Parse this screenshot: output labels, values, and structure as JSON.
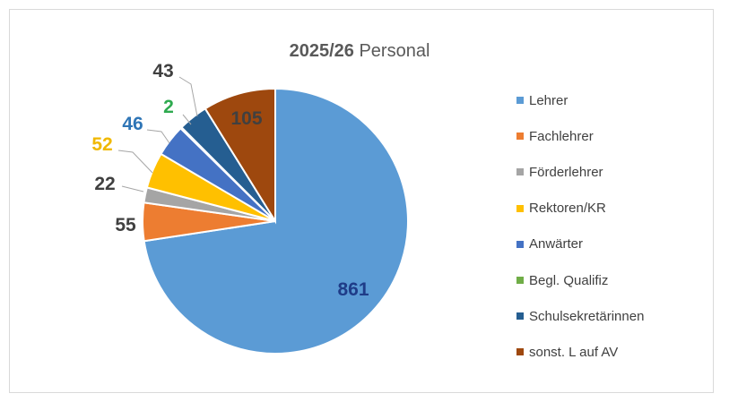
{
  "chart_data": {
    "type": "pie",
    "title_year": "2025/26",
    "title_rest": "Personal",
    "slices": [
      {
        "name": "Lehrer",
        "value": 861,
        "color": "#5B9BD5",
        "label_color": "#1F3C88"
      },
      {
        "name": "Fachlehrer",
        "value": 55,
        "color": "#ED7D31",
        "label_color": "#404040"
      },
      {
        "name": "Förderlehrer",
        "value": 22,
        "color": "#A5A5A5",
        "label_color": "#404040"
      },
      {
        "name": "Rektoren/KR",
        "value": 52,
        "color": "#FFC000",
        "label_color": "#F0B800"
      },
      {
        "name": "Anwärter",
        "value": 46,
        "color": "#4472C4",
        "label_color": "#2E75B6"
      },
      {
        "name": "Begl. Qualifiz",
        "value": 2,
        "color": "#70AD47",
        "label_color": "#2EAA4F"
      },
      {
        "name": "Schulsekretärinnen",
        "value": 43,
        "color": "#255E91",
        "label_color": "#404040"
      },
      {
        "name": "sonst. L auf AV",
        "value": 105,
        "color": "#9E480E",
        "label_color": "#404040"
      }
    ],
    "legend_position": "right"
  }
}
